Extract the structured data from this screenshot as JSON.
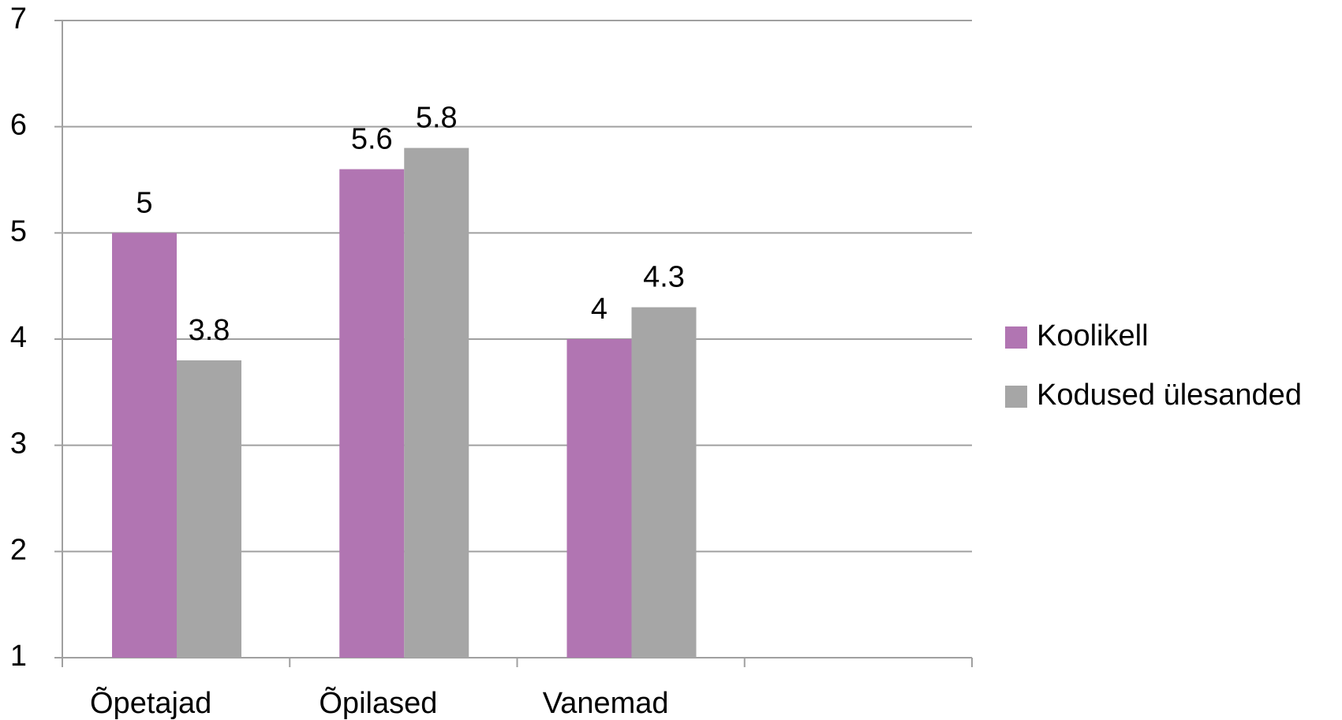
{
  "chart_data": {
    "type": "bar",
    "categories": [
      "Õpetajad",
      "Õpilased",
      "Vanemad",
      null
    ],
    "series": [
      {
        "name": "Koolikell",
        "color": "#b175b2",
        "values": [
          5,
          5.6,
          4,
          null
        ]
      },
      {
        "name": "Kodused ülesanded",
        "color": "#a6a6a6",
        "values": [
          3.8,
          5.8,
          4.3,
          null
        ]
      }
    ],
    "ylim": [
      1,
      7
    ],
    "yticks": [
      1,
      2,
      3,
      4,
      5,
      6,
      7
    ],
    "grid": true,
    "legend": "right"
  }
}
